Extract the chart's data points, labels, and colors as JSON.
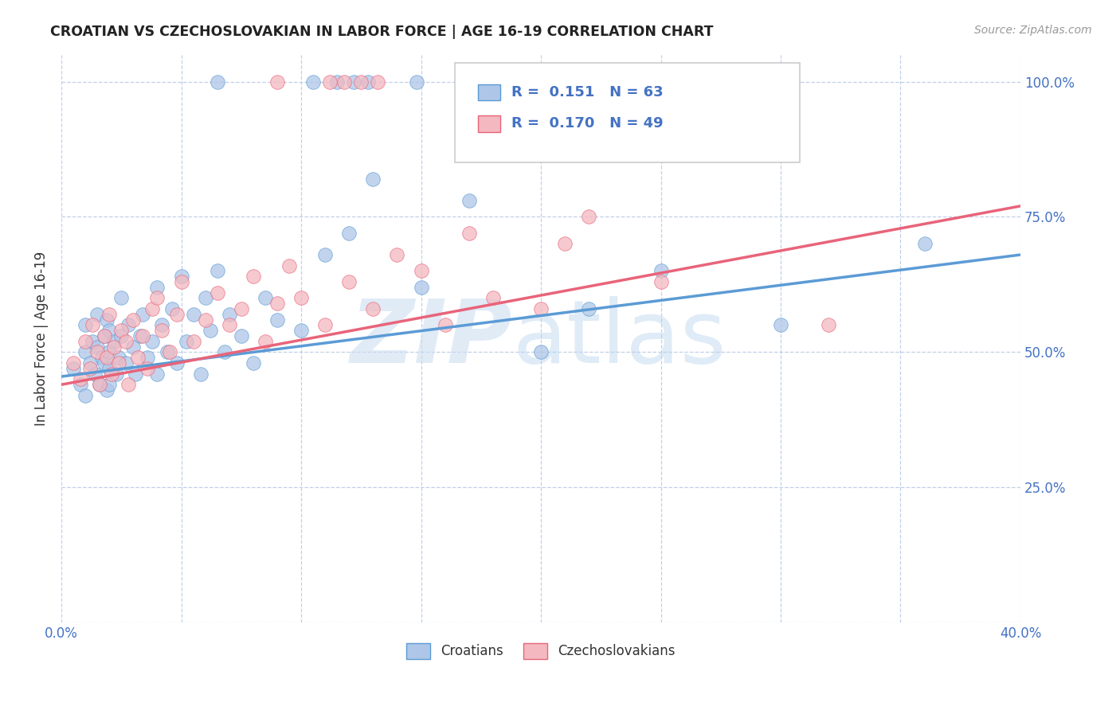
{
  "title": "CROATIAN VS CZECHOSLOVAKIAN IN LABOR FORCE | AGE 16-19 CORRELATION CHART",
  "source": "Source: ZipAtlas.com",
  "ylabel": "In Labor Force | Age 16-19",
  "x_min": 0.0,
  "x_max": 0.4,
  "y_min": 0.0,
  "y_max": 1.05,
  "x_ticks": [
    0.0,
    0.05,
    0.1,
    0.15,
    0.2,
    0.25,
    0.3,
    0.35,
    0.4
  ],
  "y_ticks": [
    0.0,
    0.25,
    0.5,
    0.75,
    1.0
  ],
  "croatian_color": "#aec6e8",
  "czechoslovakian_color": "#f4b8c0",
  "line_croatian_color": "#5b9bd5",
  "line_czechoslovakian_color": "#e8647a",
  "legend_R_croatian": "0.151",
  "legend_N_croatian": "63",
  "legend_R_czechoslovakian": "0.170",
  "legend_N_czechoslovakian": "49",
  "cro_line_x0": 0.0,
  "cro_line_y0": 0.455,
  "cro_line_x1": 0.4,
  "cro_line_y1": 0.68,
  "cze_line_x0": 0.0,
  "cze_line_y0": 0.44,
  "cze_line_x1": 0.4,
  "cze_line_y1": 0.77,
  "croatian_x": [
    0.005,
    0.008,
    0.01,
    0.01,
    0.01,
    0.012,
    0.013,
    0.014,
    0.015,
    0.015,
    0.016,
    0.017,
    0.018,
    0.018,
    0.019,
    0.019,
    0.02,
    0.02,
    0.02,
    0.02,
    0.022,
    0.023,
    0.024,
    0.025,
    0.025,
    0.027,
    0.028,
    0.03,
    0.031,
    0.033,
    0.034,
    0.036,
    0.038,
    0.04,
    0.04,
    0.042,
    0.044,
    0.046,
    0.048,
    0.05,
    0.052,
    0.055,
    0.058,
    0.06,
    0.062,
    0.065,
    0.068,
    0.07,
    0.075,
    0.08,
    0.085,
    0.09,
    0.1,
    0.11,
    0.12,
    0.13,
    0.15,
    0.17,
    0.2,
    0.22,
    0.25,
    0.3,
    0.36
  ],
  "croatian_y": [
    0.47,
    0.44,
    0.5,
    0.55,
    0.42,
    0.48,
    0.52,
    0.46,
    0.51,
    0.57,
    0.44,
    0.49,
    0.53,
    0.48,
    0.43,
    0.56,
    0.47,
    0.5,
    0.54,
    0.44,
    0.52,
    0.46,
    0.49,
    0.53,
    0.6,
    0.48,
    0.55,
    0.51,
    0.46,
    0.53,
    0.57,
    0.49,
    0.52,
    0.62,
    0.46,
    0.55,
    0.5,
    0.58,
    0.48,
    0.64,
    0.52,
    0.57,
    0.46,
    0.6,
    0.54,
    0.65,
    0.5,
    0.57,
    0.53,
    0.48,
    0.6,
    0.56,
    0.54,
    0.68,
    0.72,
    0.82,
    0.62,
    0.78,
    0.5,
    0.58,
    0.65,
    0.55,
    0.7
  ],
  "czech_x": [
    0.005,
    0.008,
    0.01,
    0.012,
    0.013,
    0.015,
    0.016,
    0.018,
    0.019,
    0.02,
    0.021,
    0.022,
    0.024,
    0.025,
    0.027,
    0.028,
    0.03,
    0.032,
    0.034,
    0.036,
    0.038,
    0.04,
    0.042,
    0.045,
    0.048,
    0.05,
    0.055,
    0.06,
    0.065,
    0.07,
    0.075,
    0.08,
    0.085,
    0.09,
    0.095,
    0.1,
    0.11,
    0.12,
    0.13,
    0.14,
    0.15,
    0.16,
    0.17,
    0.18,
    0.2,
    0.21,
    0.22,
    0.25,
    0.32
  ],
  "czech_y": [
    0.48,
    0.45,
    0.52,
    0.47,
    0.55,
    0.5,
    0.44,
    0.53,
    0.49,
    0.57,
    0.46,
    0.51,
    0.48,
    0.54,
    0.52,
    0.44,
    0.56,
    0.49,
    0.53,
    0.47,
    0.58,
    0.6,
    0.54,
    0.5,
    0.57,
    0.63,
    0.52,
    0.56,
    0.61,
    0.55,
    0.58,
    0.64,
    0.52,
    0.59,
    0.66,
    0.6,
    0.55,
    0.63,
    0.58,
    0.68,
    0.65,
    0.55,
    0.72,
    0.6,
    0.58,
    0.7,
    0.75,
    0.63,
    0.55
  ],
  "top_row_blue_x": [
    0.065,
    0.105,
    0.115,
    0.122,
    0.128,
    0.148,
    0.215
  ],
  "top_row_blue_y": [
    1.0,
    1.0,
    1.0,
    1.0,
    1.0,
    1.0,
    1.0
  ],
  "top_row_pink_x": [
    0.09,
    0.112,
    0.118,
    0.125,
    0.132,
    0.17
  ],
  "top_row_pink_y": [
    1.0,
    1.0,
    1.0,
    1.0,
    1.0,
    1.0
  ]
}
